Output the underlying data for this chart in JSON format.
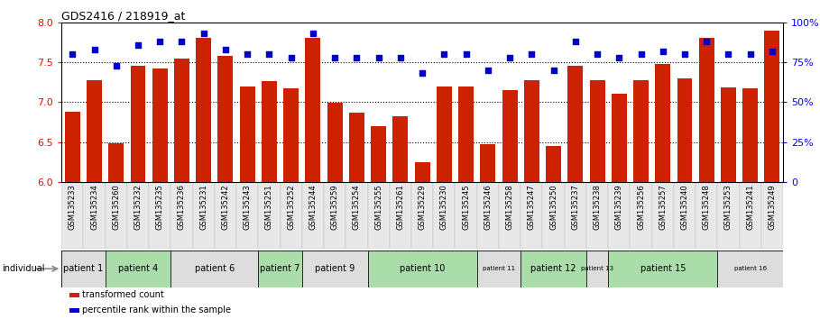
{
  "title": "GDS2416 / 218919_at",
  "gsm_labels": [
    "GSM135233",
    "GSM135234",
    "GSM135260",
    "GSM135232",
    "GSM135235",
    "GSM135236",
    "GSM135231",
    "GSM135242",
    "GSM135243",
    "GSM135251",
    "GSM135252",
    "GSM135244",
    "GSM135259",
    "GSM135254",
    "GSM135255",
    "GSM135261",
    "GSM135229",
    "GSM135230",
    "GSM135245",
    "GSM135246",
    "GSM135258",
    "GSM135247",
    "GSM135250",
    "GSM135237",
    "GSM135238",
    "GSM135239",
    "GSM135256",
    "GSM135257",
    "GSM135240",
    "GSM135248",
    "GSM135253",
    "GSM135241",
    "GSM135249"
  ],
  "bar_values": [
    6.88,
    7.27,
    6.48,
    7.45,
    7.42,
    7.55,
    7.8,
    7.58,
    7.2,
    7.26,
    7.17,
    7.8,
    6.99,
    6.87,
    6.7,
    6.82,
    6.25,
    7.2,
    7.2,
    6.47,
    7.15,
    7.27,
    6.45,
    7.45,
    7.27,
    7.1,
    7.27,
    7.48,
    7.3,
    7.8,
    7.18,
    7.17,
    7.9
  ],
  "percentile_values": [
    80,
    83,
    73,
    86,
    88,
    88,
    93,
    83,
    80,
    80,
    78,
    93,
    78,
    78,
    78,
    78,
    68,
    80,
    80,
    70,
    78,
    80,
    70,
    88,
    80,
    78,
    80,
    82,
    80,
    88,
    80,
    80,
    82
  ],
  "bar_color": "#cc2200",
  "dot_color": "#0000cc",
  "ylim_left": [
    6.0,
    8.0
  ],
  "ylim_right": [
    0,
    100
  ],
  "yticks_left": [
    6.0,
    6.5,
    7.0,
    7.5,
    8.0
  ],
  "yticks_right": [
    0,
    25,
    50,
    75,
    100
  ],
  "dotted_lines": [
    6.5,
    7.0,
    7.5
  ],
  "patient_groups": [
    {
      "label": "patient 1",
      "start": 0,
      "end": 2,
      "color": "#dddddd",
      "fontsize": 7
    },
    {
      "label": "patient 4",
      "start": 2,
      "end": 5,
      "color": "#aaddaa",
      "fontsize": 7
    },
    {
      "label": "patient 6",
      "start": 5,
      "end": 9,
      "color": "#dddddd",
      "fontsize": 7
    },
    {
      "label": "patient 7",
      "start": 9,
      "end": 11,
      "color": "#aaddaa",
      "fontsize": 7
    },
    {
      "label": "patient 9",
      "start": 11,
      "end": 14,
      "color": "#dddddd",
      "fontsize": 7
    },
    {
      "label": "patient 10",
      "start": 14,
      "end": 19,
      "color": "#aaddaa",
      "fontsize": 7
    },
    {
      "label": "patient 11",
      "start": 19,
      "end": 21,
      "color": "#dddddd",
      "fontsize": 5
    },
    {
      "label": "patient 12",
      "start": 21,
      "end": 24,
      "color": "#aaddaa",
      "fontsize": 7
    },
    {
      "label": "patient 13",
      "start": 24,
      "end": 25,
      "color": "#dddddd",
      "fontsize": 5
    },
    {
      "label": "patient 15",
      "start": 25,
      "end": 30,
      "color": "#aaddaa",
      "fontsize": 7
    },
    {
      "label": "patient 16",
      "start": 30,
      "end": 33,
      "color": "#dddddd",
      "fontsize": 5
    }
  ],
  "legend_items": [
    {
      "color": "#cc2200",
      "label": "transformed count"
    },
    {
      "color": "#0000cc",
      "label": "percentile rank within the sample"
    }
  ],
  "background_color": "#ffffff",
  "top_border_color": "#000000",
  "individual_arrow_color": "#888888"
}
